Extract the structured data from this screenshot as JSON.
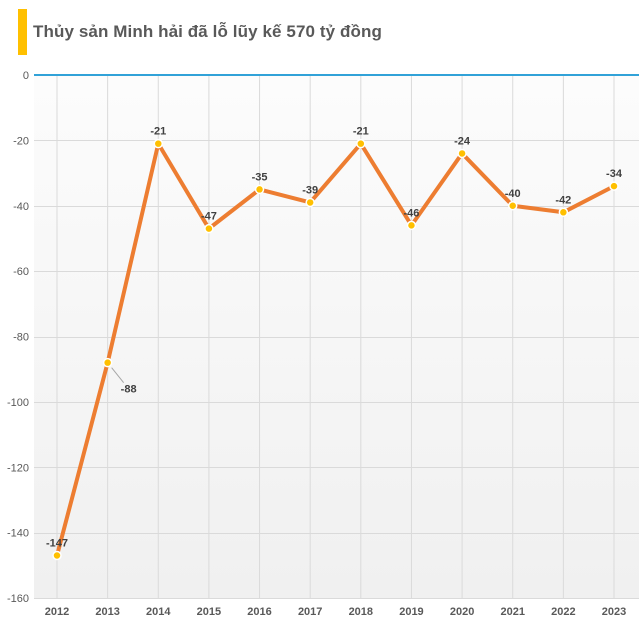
{
  "title": {
    "text": "Thủy sản Minh hải đã lỗ lũy kế 570 tỷ đồng",
    "accent_color": "#FFC000",
    "text_color": "#595959"
  },
  "chart_data": {
    "type": "line",
    "title": "Thủy sản Minh hải đã lỗ lũy kế 570 tỷ đồng",
    "categories": [
      "2012",
      "2013",
      "2014",
      "2015",
      "2016",
      "2017",
      "2018",
      "2019",
      "2020",
      "2021",
      "2022",
      "2023"
    ],
    "values": [
      -147,
      -88,
      -21,
      -47,
      -35,
      -39,
      -21,
      -46,
      -24,
      -40,
      -42,
      -34
    ],
    "data_labels": [
      "-147",
      "-88",
      "-21",
      "-47",
      "-35",
      "-39",
      "-21",
      "-46",
      "-24",
      "-40",
      "-42",
      "-34"
    ],
    "xlabel": "",
    "ylabel": "",
    "ylim": [
      -160,
      0
    ],
    "yticks": [
      0,
      -20,
      -40,
      -60,
      -80,
      -100,
      -120,
      -140,
      -160
    ],
    "grid": true,
    "legend": false,
    "data_labels_shown": true,
    "callout_label_index": 1,
    "colors": {
      "line": "#ED7D31",
      "marker_fill": "#FFC000",
      "marker_stroke": "#FFFFFF",
      "zero_axis": "#31A2D8",
      "gridline": "#DADADA",
      "data_label": "#404040",
      "axis_label": "#595959",
      "callout_line": "#A6A6A6",
      "plot_bg_top": "#FCFCFC",
      "plot_bg_bottom": "#F0F0F0"
    }
  }
}
